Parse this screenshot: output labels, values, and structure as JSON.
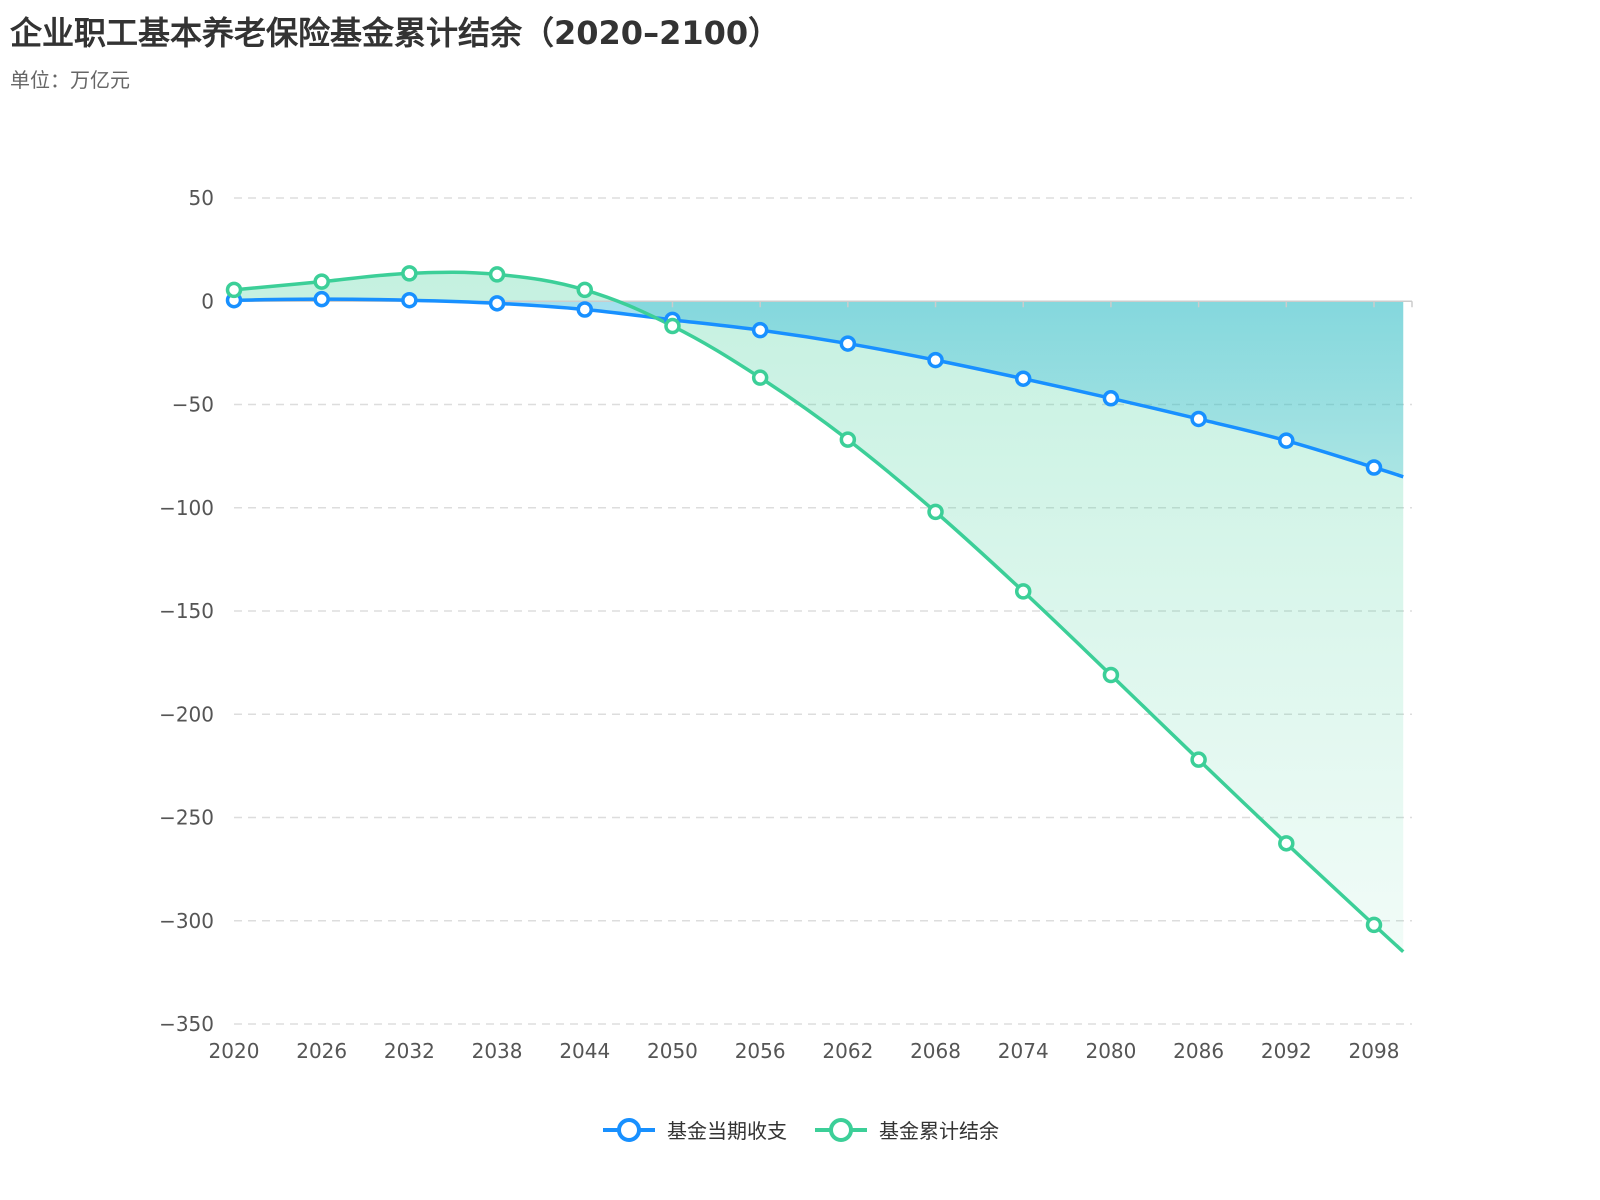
{
  "title": "企业职工基本养老保险基金累计结余（2020–2100）",
  "subtitle": "单位：万亿元",
  "colors": {
    "series1": "#1890ff",
    "series2": "#3ccf98",
    "grid": "#dddddd",
    "axis": "#cccccc"
  },
  "chart_data": {
    "type": "line",
    "x": [
      2020,
      2026,
      2032,
      2038,
      2044,
      2050,
      2056,
      2062,
      2068,
      2074,
      2080,
      2086,
      2092,
      2098,
      2100
    ],
    "ylim": [
      -350,
      50
    ],
    "yticks": [
      "50",
      "0",
      "−50",
      "−100",
      "−150",
      "−200",
      "−250",
      "−300",
      "−350"
    ],
    "ytick_values": [
      50,
      0,
      -50,
      -100,
      -150,
      -200,
      -250,
      -300,
      -350
    ],
    "xticks": [
      "2020",
      "2026",
      "2032",
      "2038",
      "2044",
      "2050",
      "2056",
      "2062",
      "2068",
      "2074",
      "2080",
      "2086",
      "2092",
      "2098"
    ],
    "grid": true,
    "legend_position": "bottom-center",
    "series": [
      {
        "name": "基金当期收支",
        "values": [
          0.5,
          1,
          0.5,
          -1,
          -4,
          -9,
          -14,
          -20.5,
          -28.5,
          -37.5,
          -47,
          -57,
          -67.5,
          -80.5,
          -85
        ]
      },
      {
        "name": "基金累计结余",
        "values": [
          5.5,
          9.5,
          13.5,
          13,
          5.5,
          -12,
          -37,
          -67,
          -102,
          -140.5,
          -181,
          -222,
          -262.5,
          -302,
          -315
        ]
      }
    ]
  },
  "legend": {
    "item1": "基金当期收支",
    "item2": "基金累计结余"
  }
}
